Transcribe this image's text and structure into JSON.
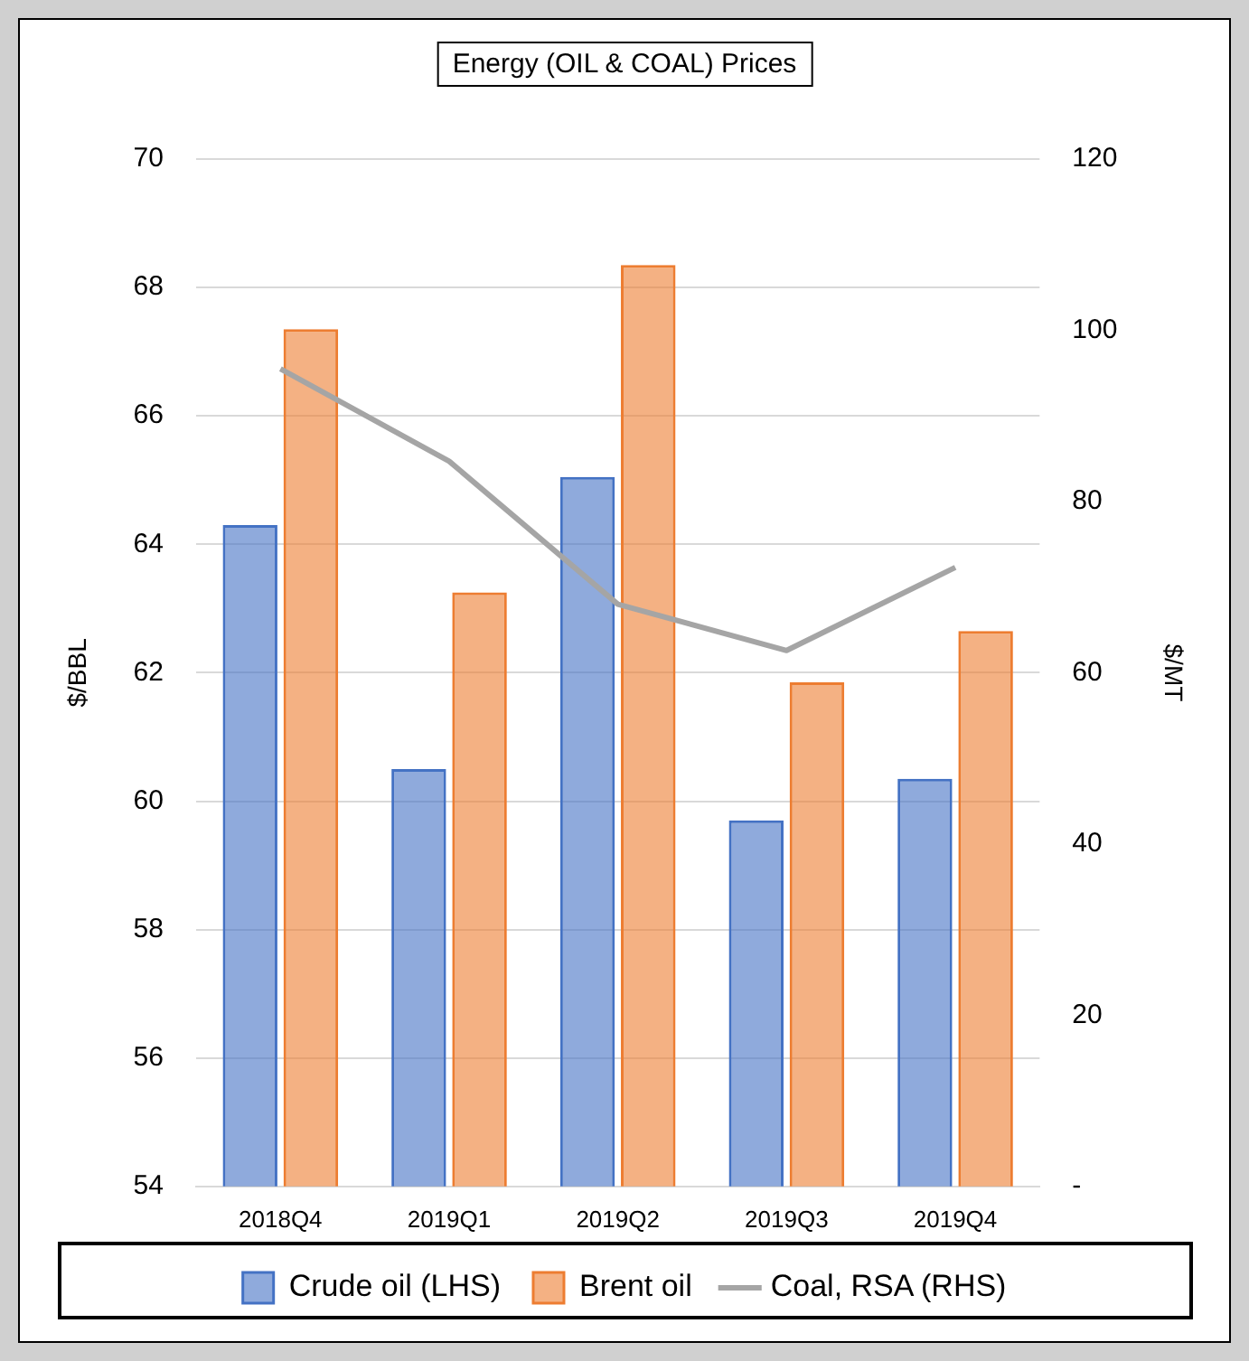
{
  "chart_data": {
    "type": "bar",
    "title": "Energy (OIL & COAL) Prices",
    "ylabel": "$/BBL",
    "y2label": "$/MT",
    "categories": [
      "2018Q4",
      "2019Q1",
      "2019Q2",
      "2019Q3",
      "2019Q4"
    ],
    "series": [
      {
        "name": "Crude oil (LHS)",
        "color": "#4472c4",
        "values": [
          64.3,
          60.5,
          65.05,
          59.7,
          60.35
        ]
      },
      {
        "name": "Brent oil",
        "color": "#ed7d31",
        "values": [
          67.35,
          63.25,
          68.35,
          61.85,
          62.65
        ]
      },
      {
        "name": "Coal, RSA (RHS)",
        "type": "line",
        "axis": "y2",
        "color": "#a5a5a5",
        "values": [
          95.5,
          84.7,
          68,
          62.6,
          72.3
        ]
      }
    ],
    "ylim": [
      54,
      70
    ],
    "yticks": [
      54,
      56,
      58,
      60,
      62,
      64,
      66,
      68,
      70
    ],
    "y2lim": [
      0,
      120
    ],
    "y2ticks": [
      {
        "value": 0,
        "label": "-"
      },
      20,
      40,
      60,
      80,
      100,
      120
    ],
    "grid": "y",
    "legend": "bottom",
    "marker": "none"
  }
}
